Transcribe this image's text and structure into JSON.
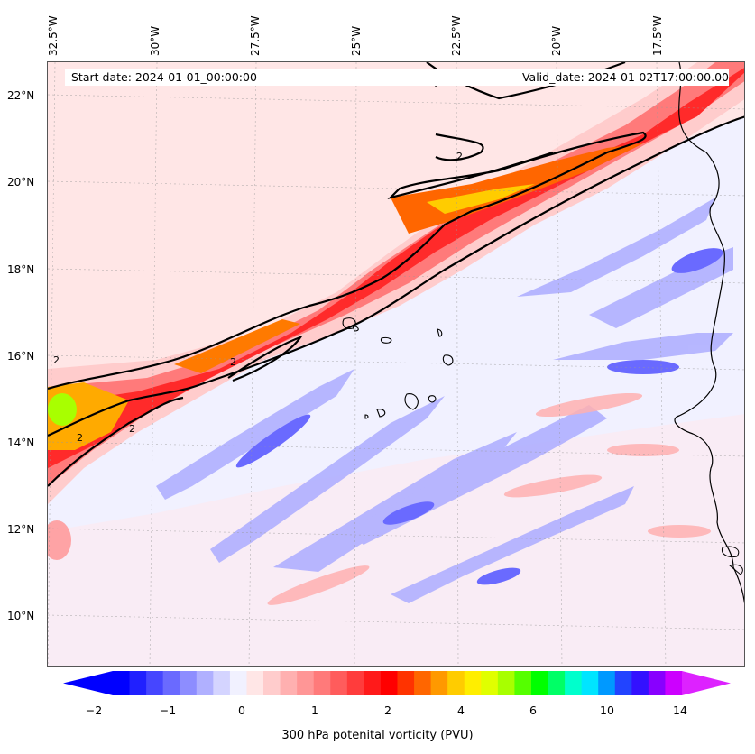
{
  "header": {
    "start_date": "Start date: 2024-01-01_00:00:00",
    "valid_date": "Valid_date: 2024-01-02T17:00:00.00"
  },
  "axes": {
    "lon_labels": [
      "32.5°W",
      "30°W",
      "27.5°W",
      "25°W",
      "22.5°W",
      "20°W",
      "17.5°W"
    ],
    "lat_labels": [
      "22°N",
      "20°N",
      "18°N",
      "16°N",
      "14°N",
      "12°N",
      "10°N"
    ]
  },
  "map": {
    "field": "300 hPa potential vorticity",
    "contour_level_label": "2",
    "contour_labels": [
      "2",
      "2",
      "2",
      "2",
      "2",
      "2"
    ]
  },
  "colorbar": {
    "label": "300 hPa potenital vorticity (PVU)",
    "ticks": [
      "−2",
      "−1",
      "0",
      "1",
      "2",
      "4",
      "6",
      "10",
      "14"
    ],
    "colors": [
      "#0000ff",
      "#2020ff",
      "#4646ff",
      "#6a6aff",
      "#8d8dff",
      "#b0b0ff",
      "#d4d4ff",
      "#f1f1ff",
      "#ffe6e6",
      "#ffcccc",
      "#ffb0b0",
      "#ff9696",
      "#ff7a7a",
      "#ff5c5c",
      "#ff3c3c",
      "#ff1a1a",
      "#ff0000",
      "#ff3300",
      "#ff6600",
      "#ff9900",
      "#ffcc00",
      "#ffee00",
      "#e0ff00",
      "#a8ff00",
      "#55ff00",
      "#00ff00",
      "#00ff66",
      "#00ffcc",
      "#00e5ff",
      "#0099ff",
      "#2244ff",
      "#3311ff",
      "#8800ff",
      "#cc00ff"
    ],
    "min_color": "#0000ff",
    "max_color": "#dd22ff"
  }
}
